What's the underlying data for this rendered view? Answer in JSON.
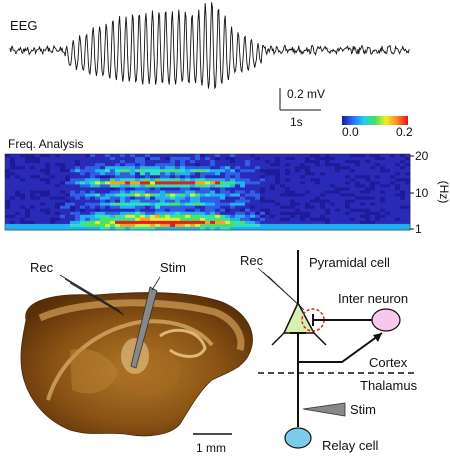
{
  "eeg": {
    "label": "EEG",
    "scale_voltage": "0.2 mV",
    "scale_time": "1s"
  },
  "colorbar": {
    "min_label": "0.0",
    "max_label": "0.2",
    "colors": [
      "#1a1aa0",
      "#2a6cff",
      "#20d0f0",
      "#40e060",
      "#f0f020",
      "#ff8a20",
      "#e01020"
    ]
  },
  "freq": {
    "label": "Freq. Analysis",
    "axis_label": "(Hz)",
    "ticks": [
      "20",
      "10",
      "1"
    ]
  },
  "slice": {
    "rec_label": "Rec",
    "stim_label": "Stim",
    "scale_label": "1 mm"
  },
  "circuit": {
    "rec_label": "Rec",
    "pyramidal_label": "Pyramidal cell",
    "interneuron_label": "Inter neuron",
    "cortex_label": "Cortex",
    "thalamus_label": "Thalamus",
    "stim_label": "Stim",
    "relay_label": "Relay cell",
    "pyramidal_color": "#d8f0b0",
    "interneuron_color": "#f6c8ee",
    "relay_color": "#7ccbe8",
    "inhibitory_highlight": "#e02020"
  }
}
